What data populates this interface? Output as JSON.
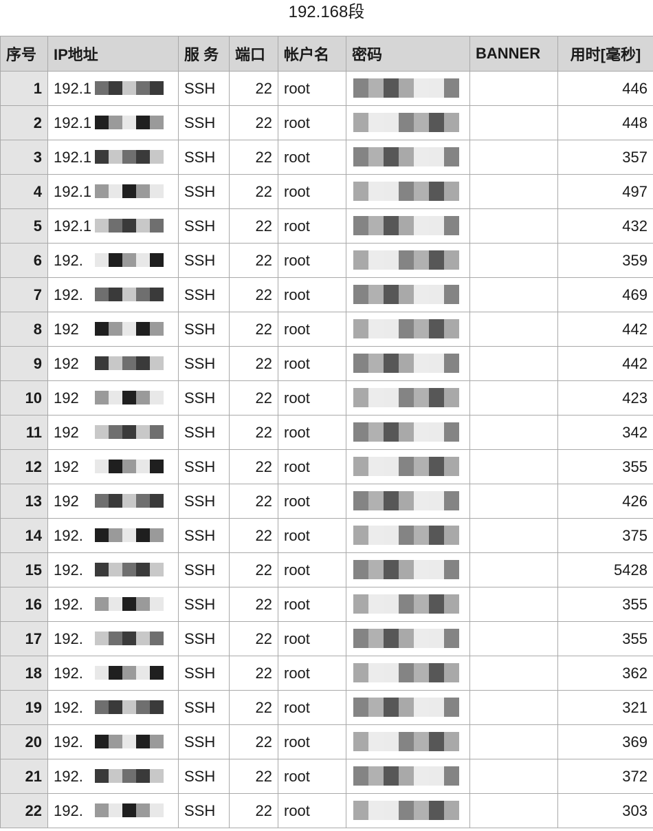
{
  "title": "192.168段",
  "columns": {
    "idx": "序号",
    "ip": "IP地址",
    "service": "服 务",
    "port": "端口",
    "account": "帐户名",
    "password": "密码",
    "banner": "BANNER",
    "time": "用时[毫秒]"
  },
  "rows": [
    {
      "idx": "1",
      "ip": "192.1",
      "service": "SSH",
      "port": "22",
      "account": "root",
      "banner": "",
      "time": "446"
    },
    {
      "idx": "2",
      "ip": "192.1",
      "service": "SSH",
      "port": "22",
      "account": "root",
      "banner": "",
      "time": "448"
    },
    {
      "idx": "3",
      "ip": "192.1",
      "service": "SSH",
      "port": "22",
      "account": "root",
      "banner": "",
      "time": "357"
    },
    {
      "idx": "4",
      "ip": "192.1",
      "service": "SSH",
      "port": "22",
      "account": "root",
      "banner": "",
      "time": "497"
    },
    {
      "idx": "5",
      "ip": "192.1",
      "service": "SSH",
      "port": "22",
      "account": "root",
      "banner": "",
      "time": "432"
    },
    {
      "idx": "6",
      "ip": "192.",
      "service": "SSH",
      "port": "22",
      "account": "root",
      "banner": "",
      "time": "359"
    },
    {
      "idx": "7",
      "ip": "192.",
      "service": "SSH",
      "port": "22",
      "account": "root",
      "banner": "",
      "time": "469"
    },
    {
      "idx": "8",
      "ip": "192",
      "service": "SSH",
      "port": "22",
      "account": "root",
      "banner": "",
      "time": "442"
    },
    {
      "idx": "9",
      "ip": "192",
      "service": "SSH",
      "port": "22",
      "account": "root",
      "banner": "",
      "time": "442"
    },
    {
      "idx": "10",
      "ip": "192",
      "service": "SSH",
      "port": "22",
      "account": "root",
      "banner": "",
      "time": "423"
    },
    {
      "idx": "11",
      "ip": "192",
      "service": "SSH",
      "port": "22",
      "account": "root",
      "banner": "",
      "time": "342"
    },
    {
      "idx": "12",
      "ip": "192",
      "service": "SSH",
      "port": "22",
      "account": "root",
      "banner": "",
      "time": "355"
    },
    {
      "idx": "13",
      "ip": "192",
      "service": "SSH",
      "port": "22",
      "account": "root",
      "banner": "",
      "time": "426"
    },
    {
      "idx": "14",
      "ip": "192.",
      "service": "SSH",
      "port": "22",
      "account": "root",
      "banner": "",
      "time": "375"
    },
    {
      "idx": "15",
      "ip": "192.",
      "service": "SSH",
      "port": "22",
      "account": "root",
      "banner": "",
      "time": "5428"
    },
    {
      "idx": "16",
      "ip": "192.",
      "service": "SSH",
      "port": "22",
      "account": "root",
      "banner": "",
      "time": "355"
    },
    {
      "idx": "17",
      "ip": "192.",
      "service": "SSH",
      "port": "22",
      "account": "root",
      "banner": "",
      "time": "355"
    },
    {
      "idx": "18",
      "ip": "192.",
      "service": "SSH",
      "port": "22",
      "account": "root",
      "banner": "",
      "time": "362"
    },
    {
      "idx": "19",
      "ip": "192.",
      "service": "SSH",
      "port": "22",
      "account": "root",
      "banner": "",
      "time": "321"
    },
    {
      "idx": "20",
      "ip": "192.",
      "service": "SSH",
      "port": "22",
      "account": "root",
      "banner": "",
      "time": "369"
    },
    {
      "idx": "21",
      "ip": "192.",
      "service": "SSH",
      "port": "22",
      "account": "root",
      "banner": "",
      "time": "372"
    },
    {
      "idx": "22",
      "ip": "192.",
      "service": "SSH",
      "port": "22",
      "account": "root",
      "banner": "",
      "time": "303"
    }
  ],
  "colors": {
    "header_bg": "#d6d6d6",
    "index_bg": "#e4e4e4",
    "grid_line": "#a9a9a9",
    "redaction_shades": [
      "#6f6f6f",
      "#1f1f1f",
      "#3a3a3a",
      "#9a9a9a",
      "#c8c8c8",
      "#e8e8e8"
    ]
  }
}
